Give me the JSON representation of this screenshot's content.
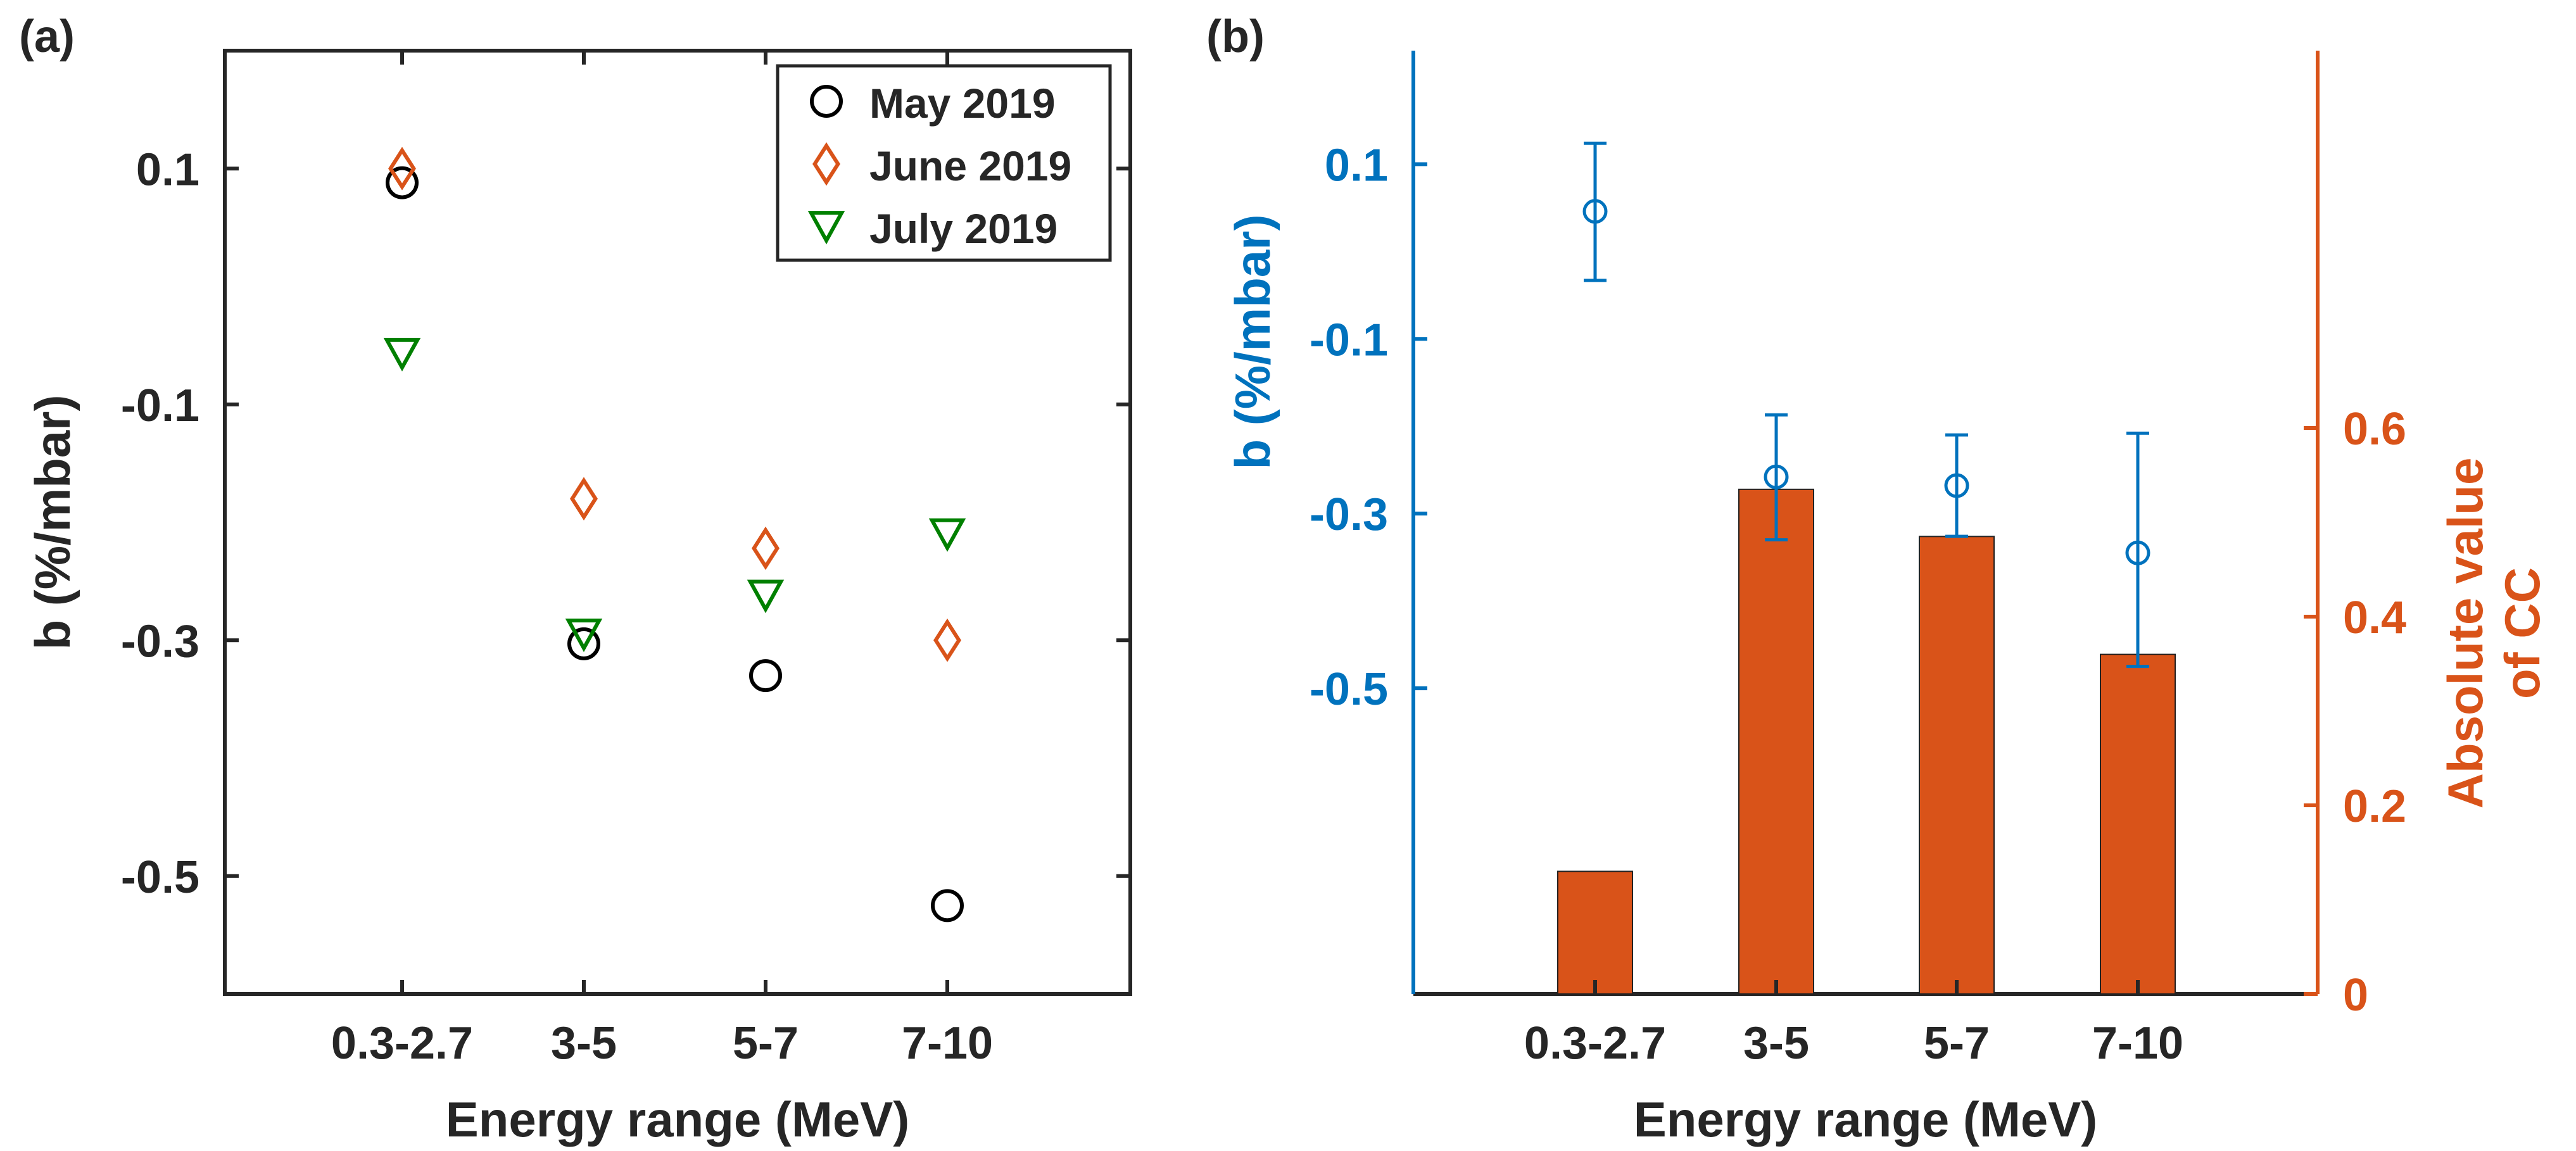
{
  "colors": {
    "axis": "#262626",
    "may": "#000000",
    "june": "#D95319",
    "july": "#008000",
    "blue": "#0072BD",
    "orange": "#D95319"
  },
  "chart_data": [
    {
      "panel_label": "(a)",
      "type": "scatter",
      "categories": [
        "0.3-2.7",
        "3-5",
        "5-7",
        "7-10"
      ],
      "xlabel": "Energy range (MeV)",
      "ylabel": "b (%/mbar)",
      "ylim": [
        -0.6,
        0.2
      ],
      "yticks": [
        0.1,
        -0.1,
        -0.3,
        -0.5
      ],
      "ytick_labels": [
        "0.1",
        "-0.1",
        "-0.3",
        "-0.5"
      ],
      "legend_position": "top-right",
      "series": [
        {
          "name": "May 2019",
          "marker": "circle",
          "color_key": "may",
          "values": [
            0.088,
            -0.303,
            -0.33,
            -0.525
          ]
        },
        {
          "name": "June 2019",
          "marker": "diamond",
          "color_key": "june",
          "values": [
            0.1,
            -0.18,
            -0.222,
            -0.3
          ]
        },
        {
          "name": "July 2019",
          "marker": "triangle-down",
          "color_key": "july",
          "values": [
            -0.057,
            -0.295,
            -0.262,
            -0.21
          ]
        }
      ]
    },
    {
      "panel_label": "(b)",
      "type": "bar",
      "categories": [
        "0.3-2.7",
        "3-5",
        "5-7",
        "7-10"
      ],
      "xlabel": "Energy range (MeV)",
      "ylabel_left": "b (%/mbar)",
      "ylabel_right": [
        "Absolute value",
        "of CC"
      ],
      "left_axis": {
        "ylim": [
          -0.85,
          0.23
        ],
        "yticks": [
          0.1,
          -0.1,
          -0.3,
          -0.5
        ],
        "ytick_labels": [
          "0.1",
          "-0.1",
          "-0.3",
          "-0.5"
        ]
      },
      "right_axis": {
        "ylim": [
          0,
          1.0
        ],
        "yticks": [
          0,
          0.2,
          0.4,
          0.6
        ],
        "ytick_labels": [
          "0",
          "0.2",
          "0.4",
          "0.6"
        ]
      },
      "errorbar_series": {
        "name": "b",
        "values": [
          0.046,
          -0.258,
          -0.268,
          -0.345
        ],
        "err_low": [
          0.079,
          0.072,
          0.058,
          0.13
        ],
        "err_high": [
          0.078,
          0.071,
          0.058,
          0.137
        ]
      },
      "bar_series": {
        "name": "Absolute value of CC",
        "values": [
          0.13,
          0.535,
          0.485,
          0.36
        ]
      }
    }
  ]
}
